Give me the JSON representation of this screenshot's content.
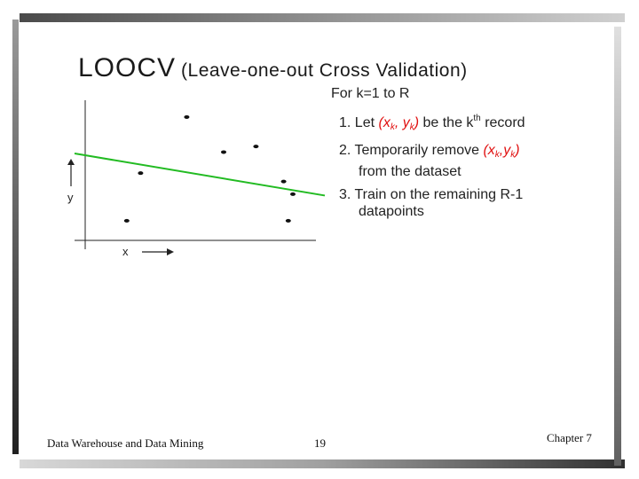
{
  "slide": {
    "title_main": "LOOCV",
    "title_sub": "(Leave-one-out Cross Validation)",
    "loop_header": "For k=1 to R",
    "steps": [
      {
        "num": "1.",
        "parts": [
          "Let ",
          "(x",
          "k",
          ", y",
          "k",
          ")",
          " be the k",
          "th",
          " record"
        ]
      },
      {
        "num": "2.",
        "line1": "Temporarily remove ",
        "x_open": "(x",
        "k_sub": "k",
        "comma_y": ",y",
        "k_sub2": "k",
        "close": ")",
        "line2": "from the dataset"
      },
      {
        "num": "3.",
        "line1": "Train on the remaining R-1",
        "line2": "datapoints"
      }
    ]
  },
  "plot": {
    "x_label": "x",
    "y_label": "y",
    "points": [
      {
        "x": 0.44,
        "y": 0.88
      },
      {
        "x": 0.6,
        "y": 0.63
      },
      {
        "x": 0.74,
        "y": 0.67
      },
      {
        "x": 0.24,
        "y": 0.48
      },
      {
        "x": 0.86,
        "y": 0.42
      },
      {
        "x": 0.9,
        "y": 0.33
      },
      {
        "x": 0.18,
        "y": 0.14
      },
      {
        "x": 0.88,
        "y": 0.14
      }
    ],
    "fit_line": {
      "y_at_x0": 0.62,
      "y_at_x1": 0.32
    },
    "line_color": "#22bb22"
  },
  "footer": {
    "left": "Data Warehouse and Data Mining",
    "center": "19",
    "right": "Chapter 7"
  }
}
